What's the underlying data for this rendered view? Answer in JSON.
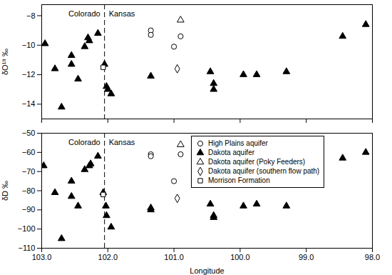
{
  "chart_data": [
    {
      "type": "scatter",
      "ylabel": "δO¹⁸ ‰",
      "xlim": [
        103,
        98
      ],
      "xticks": [
        103,
        102,
        101,
        100,
        99,
        98
      ],
      "ylim": [
        -15,
        -7.25
      ],
      "yticks": [
        -14,
        -12,
        -10,
        -8
      ],
      "tick_labels": "y",
      "border": {
        "x": 102.05,
        "line_style": "dashed",
        "labels": [
          "Colorado",
          "Kansas"
        ]
      },
      "series": [
        {
          "marker": "circle_open",
          "color": "#000000",
          "x": [
            101.35,
            101.35,
            101.0,
            100.9
          ],
          "values": [
            -9.0,
            -9.3,
            -10.1,
            -9.4
          ]
        },
        {
          "marker": "triangle",
          "color": "#000000",
          "x": [
            102.95,
            102.8,
            102.7,
            102.55,
            102.55,
            102.45,
            102.35,
            102.3,
            102.28,
            102.15,
            102.05,
            102.02,
            102.0,
            101.95,
            101.35,
            100.45,
            100.4,
            100.4,
            99.95,
            99.75,
            99.3,
            98.45,
            98.1
          ],
          "values": [
            -9.9,
            -11.6,
            -14.2,
            -10.7,
            -11.3,
            -12.3,
            -10.1,
            -9.5,
            -9.7,
            -9.2,
            -11.3,
            -12.8,
            -13.0,
            -13.3,
            -12.1,
            -11.8,
            -12.6,
            -13.0,
            -12.0,
            -12.0,
            -11.8,
            -9.4,
            -8.6
          ]
        },
        {
          "marker": "triangle_open",
          "color": "#000000",
          "x": [
            100.9
          ],
          "values": [
            -8.3
          ]
        },
        {
          "marker": "diamond_open",
          "color": "#000000",
          "x": [
            100.95
          ],
          "values": [
            -11.6
          ]
        },
        {
          "marker": "square_open",
          "color": "#000000",
          "x": [
            102.07
          ],
          "values": [
            -11.5
          ]
        }
      ]
    },
    {
      "type": "scatter",
      "ylabel": "δD ‰",
      "xlabel": "Longitude",
      "xlim": [
        103,
        98
      ],
      "xticks": [
        103,
        102,
        101,
        100,
        99,
        98
      ],
      "ylim": [
        -110,
        -50
      ],
      "yticks": [
        -110,
        -100,
        -90,
        -80,
        -70,
        -60,
        -50
      ],
      "legend": "top-right",
      "border": {
        "x": 102.05,
        "line_style": "dashed",
        "labels": [
          "Colorado",
          "Kansas"
        ]
      },
      "series": [
        {
          "name": "High Plains aquifer",
          "marker": "circle_open",
          "color": "#000000",
          "x": [
            101.35,
            101.35,
            101.0,
            100.9
          ],
          "values": [
            -61,
            -62,
            -75,
            -61
          ]
        },
        {
          "name": "Dakota aquifer",
          "marker": "triangle",
          "color": "#000000",
          "x": [
            102.97,
            102.8,
            102.7,
            102.55,
            102.55,
            102.45,
            102.35,
            102.28,
            102.26,
            102.15,
            102.07,
            102.03,
            102.02,
            101.95,
            101.35,
            101.35,
            100.45,
            100.4,
            100.4,
            99.95,
            99.75,
            99.3,
            98.45,
            98.1
          ],
          "values": [
            -67,
            -81,
            -105,
            -75,
            -83,
            -88,
            -69,
            -67,
            -66,
            -62,
            -81,
            -88,
            -93,
            -99,
            -89,
            -90,
            -87,
            -93,
            -94,
            -88,
            -87,
            -88,
            -63,
            -60
          ]
        },
        {
          "name": "Dakota aquifer (Poky Feeders)",
          "marker": "triangle_open",
          "color": "#000000",
          "x": [
            100.9
          ],
          "values": [
            -56
          ]
        },
        {
          "name": "Dakota aquifer (southern flow path)",
          "marker": "diamond_open",
          "color": "#000000",
          "x": [
            100.95
          ],
          "values": [
            -84
          ]
        },
        {
          "name": "Morrison Formation",
          "marker": "square_open",
          "color": "#000000",
          "x": [
            102.07
          ],
          "values": [
            -82
          ]
        }
      ]
    }
  ]
}
